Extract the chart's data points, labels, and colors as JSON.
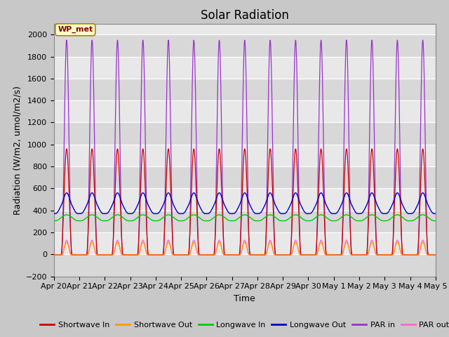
{
  "title": "Solar Radiation",
  "xlabel": "Time",
  "ylabel": "Radiation (W/m2, umol/m2/s)",
  "ylim": [
    -200,
    2100
  ],
  "yticks": [
    -200,
    0,
    200,
    400,
    600,
    800,
    1000,
    1200,
    1400,
    1600,
    1800,
    2000
  ],
  "station_label": "WP_met",
  "fig_bg_color": "#c8c8c8",
  "plot_bg_color": "#e8e8e8",
  "n_days": 15,
  "x_tick_labels": [
    "Apr 20",
    "Apr 21",
    "Apr 22",
    "Apr 23",
    "Apr 24",
    "Apr 25",
    "Apr 26",
    "Apr 27",
    "Apr 28",
    "Apr 29",
    "Apr 30",
    "May 1",
    "May 2",
    "May 3",
    "May 4",
    "May 5"
  ],
  "series": {
    "shortwave_in": {
      "color": "#cc0000",
      "label": "Shortwave In",
      "peak": 960,
      "baseline": -5
    },
    "shortwave_out": {
      "color": "#ff9900",
      "label": "Shortwave Out",
      "peak": 110,
      "baseline": -5
    },
    "longwave_in": {
      "color": "#00cc00",
      "label": "Longwave In",
      "day_val": 360,
      "night_val": 305
    },
    "longwave_out": {
      "color": "#0000cc",
      "label": "Longwave Out",
      "day_val": 510,
      "night_val": 370
    },
    "par_in": {
      "color": "#9933cc",
      "label": "PAR in",
      "peak": 1950,
      "baseline": -5
    },
    "par_out": {
      "color": "#ff66cc",
      "label": "PAR out",
      "peak": 130,
      "baseline": -5
    }
  },
  "title_fontsize": 12,
  "label_fontsize": 9,
  "tick_fontsize": 8,
  "legend_fontsize": 8
}
